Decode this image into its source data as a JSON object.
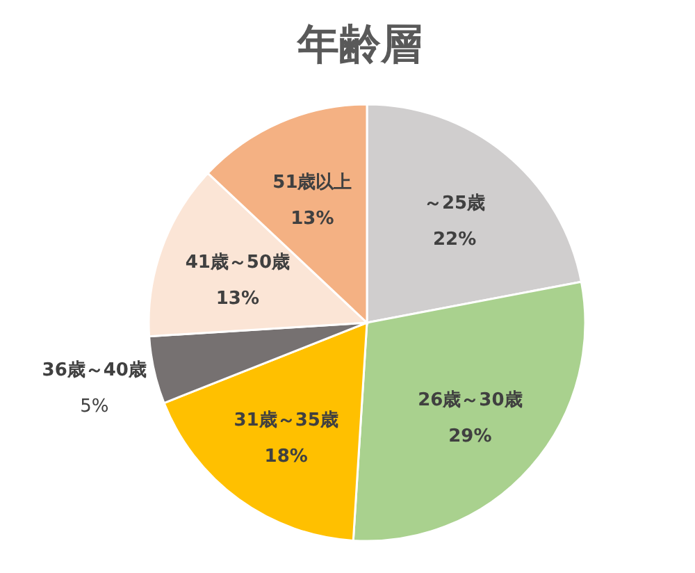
{
  "chart_data": {
    "type": "pie",
    "title": "年齢層",
    "categories": [
      "～25歳",
      "26歳～30歳",
      "31歳～35歳",
      "36歳～40歳",
      "41歳～50歳",
      "51歳以上"
    ],
    "values": [
      22,
      29,
      18,
      5,
      13,
      13
    ],
    "value_labels": [
      "22%",
      "29%",
      "18%",
      "5%",
      "13%",
      "13%"
    ],
    "colors": [
      "#d0cece",
      "#a9d18e",
      "#ffc000",
      "#767171",
      "#fbe5d6",
      "#f4b183"
    ]
  }
}
